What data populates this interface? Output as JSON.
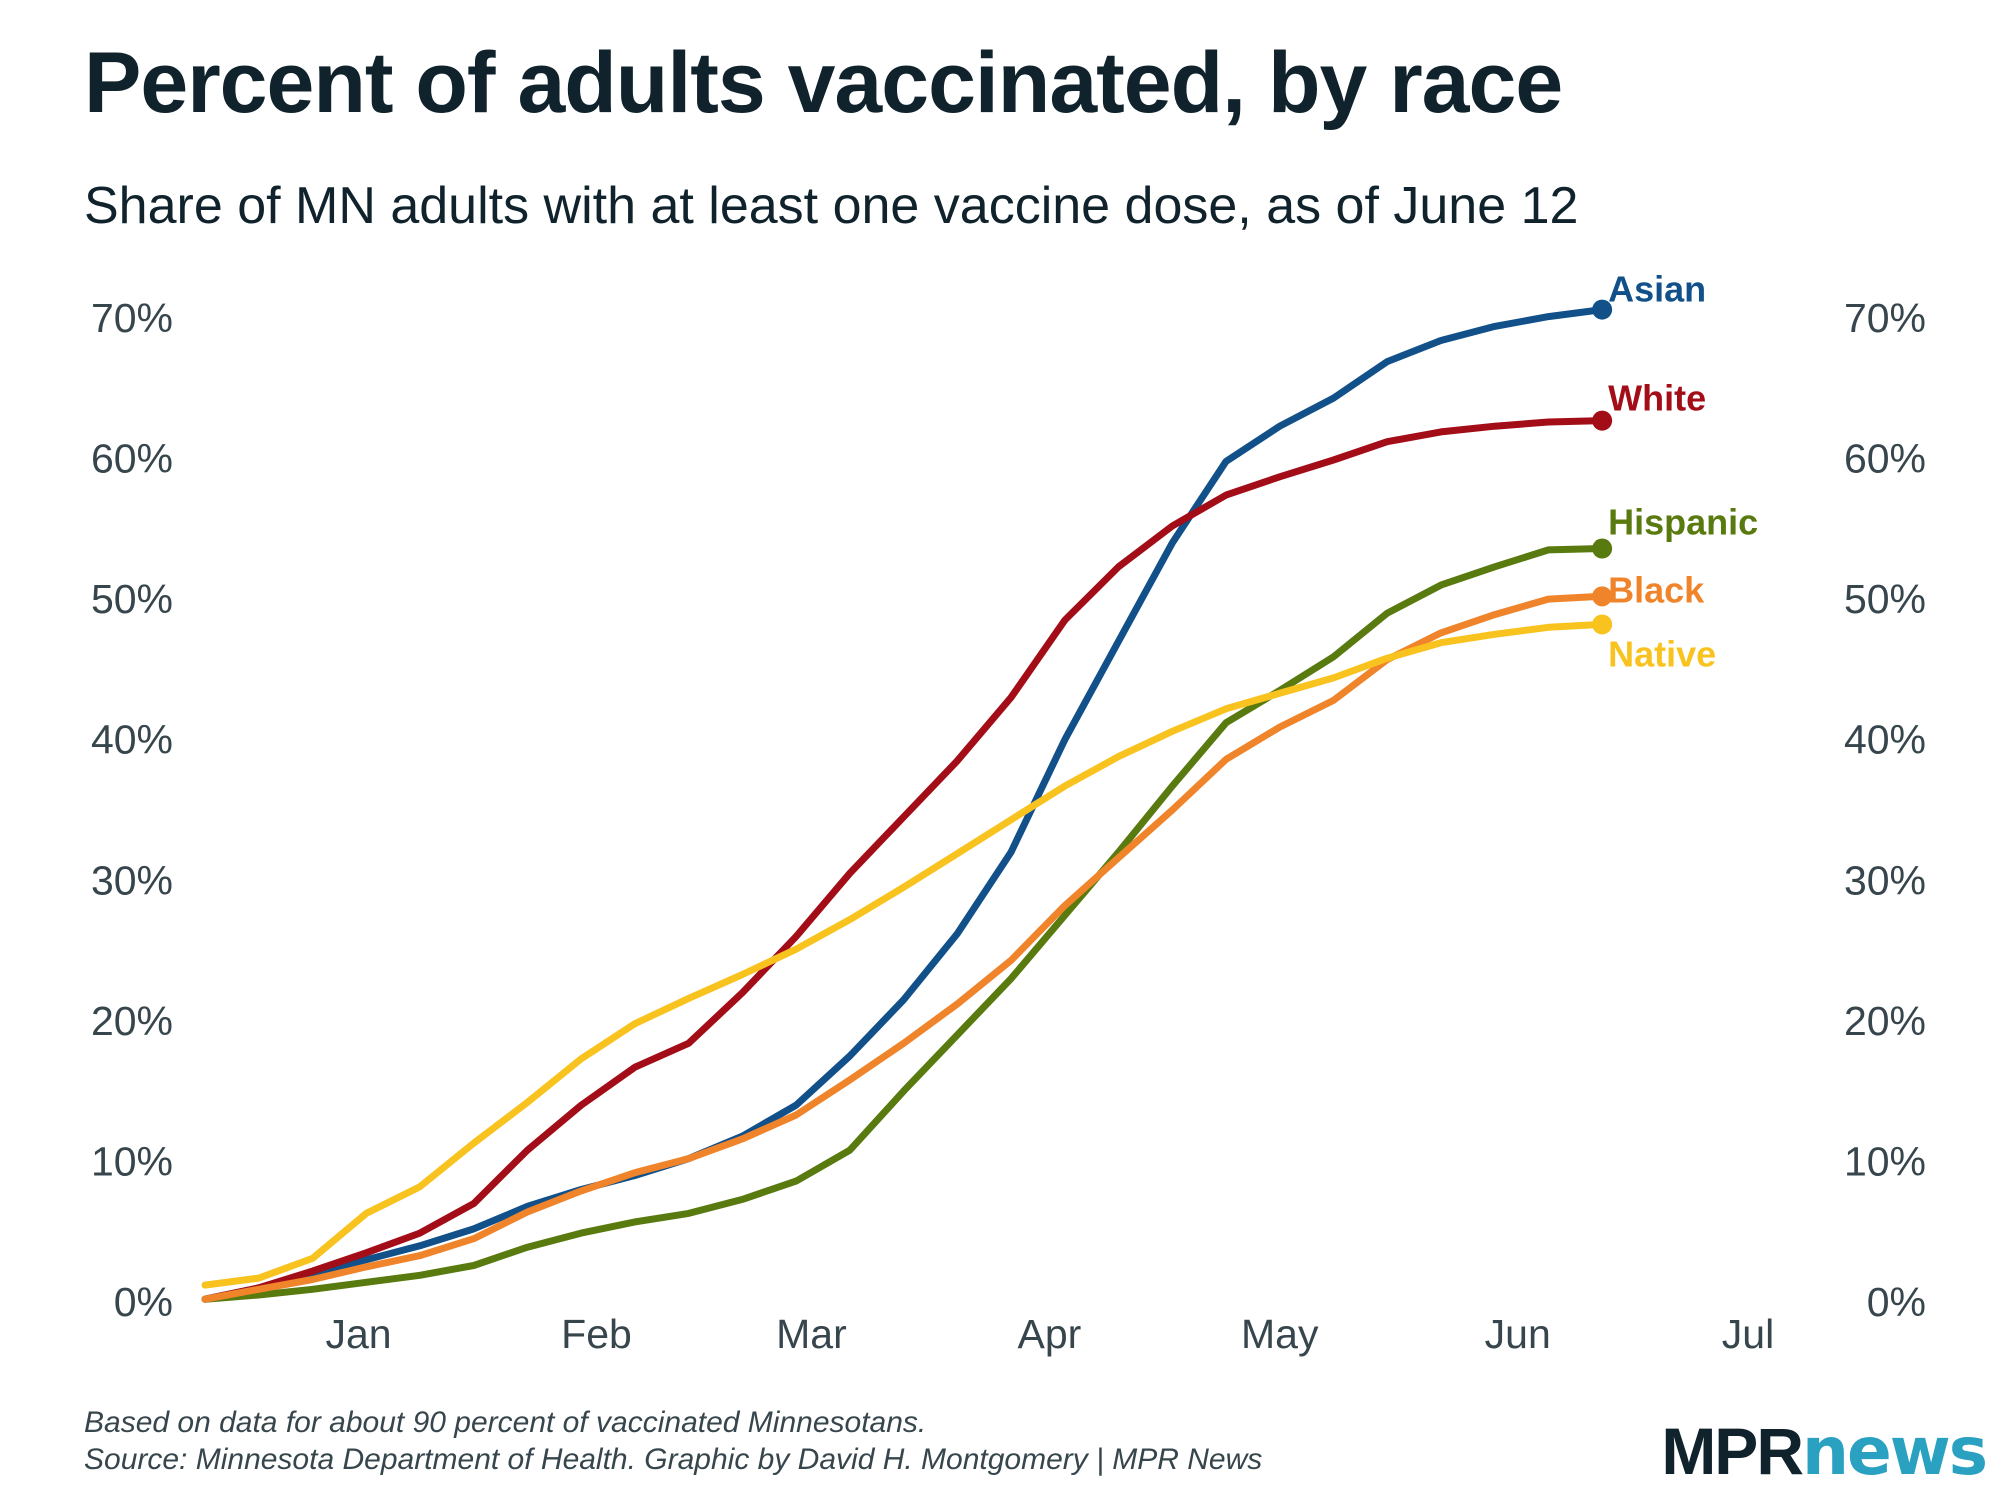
{
  "title": "Percent of adults vaccinated, by race",
  "subtitle": "Share of MN adults with at least one vaccine dose, as of June 12",
  "notes": {
    "line1": "Based on data for about 90 percent of vaccinated Minnesotans.",
    "line2": "Source: Minnesota Department of Health. Graphic by David H. Montgomery | MPR News"
  },
  "logo": {
    "part1": "MPR",
    "part2": "news",
    "colors": {
      "part1": "#10232c",
      "part2": "#2aa1c0"
    }
  },
  "chart_data": {
    "type": "line",
    "title": "Percent of adults vaccinated, by race",
    "subtitle": "Share of MN adults with at least one vaccine dose, as of June 12",
    "xlabel": "",
    "ylabel": "",
    "x_range": [
      "2020-12-12",
      "2021-07-01"
    ],
    "ylim": [
      0,
      70
    ],
    "y_ticks": [
      0,
      10,
      20,
      30,
      40,
      50,
      60,
      70
    ],
    "y_tick_format": "percent",
    "y_axis_sides": "both",
    "x_tick_labels": [
      {
        "date": "2021-01-01",
        "label": "Jan"
      },
      {
        "date": "2021-02-01",
        "label": "Feb"
      },
      {
        "date": "2021-03-01",
        "label": "Mar"
      },
      {
        "date": "2021-04-01",
        "label": "Apr"
      },
      {
        "date": "2021-05-01",
        "label": "May"
      },
      {
        "date": "2021-06-01",
        "label": "Jun"
      },
      {
        "date": "2021-07-01",
        "label": "Jul"
      }
    ],
    "grid": false,
    "legend": "direct labels at line ends",
    "x": [
      "2020-12-12",
      "2020-12-19",
      "2020-12-26",
      "2021-01-02",
      "2021-01-09",
      "2021-01-16",
      "2021-01-23",
      "2021-01-30",
      "2021-02-06",
      "2021-02-13",
      "2021-02-20",
      "2021-02-27",
      "2021-03-06",
      "2021-03-13",
      "2021-03-20",
      "2021-03-27",
      "2021-04-03",
      "2021-04-10",
      "2021-04-17",
      "2021-04-24",
      "2021-05-01",
      "2021-05-08",
      "2021-05-15",
      "2021-05-22",
      "2021-05-29",
      "2021-06-05",
      "2021-06-12"
    ],
    "series": [
      {
        "name": "Asian",
        "color": "#12508a",
        "values": [
          0.2,
          1.0,
          2.0,
          3.0,
          4.0,
          5.2,
          6.8,
          8.0,
          9.0,
          10.2,
          11.8,
          14.0,
          17.5,
          21.5,
          26.2,
          32.0,
          40.0,
          47.0,
          54.0,
          59.8,
          62.3,
          64.3,
          66.9,
          68.4,
          69.4,
          70.1,
          70.6
        ]
      },
      {
        "name": "White",
        "color": "#a30d17",
        "values": [
          0.2,
          1.0,
          2.2,
          3.5,
          4.9,
          7.0,
          10.8,
          14.0,
          16.7,
          18.4,
          22.0,
          26.0,
          30.5,
          34.5,
          38.5,
          43.0,
          48.5,
          52.3,
          55.2,
          57.4,
          58.7,
          59.9,
          61.2,
          61.9,
          62.3,
          62.6,
          62.7
        ]
      },
      {
        "name": "Hispanic",
        "color": "#587a0f",
        "values": [
          0.2,
          0.5,
          0.9,
          1.4,
          1.9,
          2.6,
          3.9,
          4.9,
          5.7,
          6.3,
          7.3,
          8.6,
          10.8,
          15.0,
          19.0,
          23.0,
          27.5,
          32.0,
          36.7,
          41.2,
          43.5,
          45.9,
          49.0,
          51.0,
          52.3,
          53.5,
          53.6
        ]
      },
      {
        "name": "Black",
        "color": "#f0842a",
        "values": [
          0.2,
          0.9,
          1.6,
          2.5,
          3.3,
          4.5,
          6.4,
          7.9,
          9.2,
          10.2,
          11.6,
          13.3,
          15.8,
          18.4,
          21.2,
          24.3,
          28.2,
          31.6,
          35.0,
          38.6,
          40.9,
          42.8,
          45.7,
          47.6,
          48.9,
          50.0,
          50.2
        ]
      },
      {
        "name": "Native",
        "color": "#f9c31f",
        "values": [
          1.2,
          1.7,
          3.1,
          6.3,
          8.2,
          11.3,
          14.2,
          17.3,
          19.8,
          21.6,
          23.3,
          25.1,
          27.2,
          29.5,
          31.9,
          34.3,
          36.7,
          38.8,
          40.6,
          42.2,
          43.3,
          44.4,
          45.8,
          46.9,
          47.5,
          48.0,
          48.2
        ]
      }
    ]
  }
}
